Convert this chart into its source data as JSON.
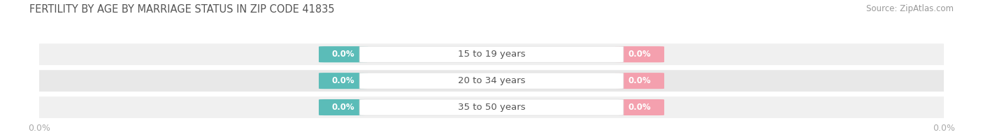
{
  "title": "FERTILITY BY AGE BY MARRIAGE STATUS IN ZIP CODE 41835",
  "source": "Source: ZipAtlas.com",
  "categories": [
    "15 to 19 years",
    "20 to 34 years",
    "35 to 50 years"
  ],
  "married_values": [
    0.0,
    0.0,
    0.0
  ],
  "unmarried_values": [
    0.0,
    0.0,
    0.0
  ],
  "married_color": "#5bbcb8",
  "unmarried_color": "#f4a0ae",
  "row_bg_color_odd": "#f0f0f0",
  "row_bg_color_even": "#e8e8e8",
  "center_pill_color": "#ffffff",
  "center_pill_edge": "#dddddd",
  "center_label_color": "#555555",
  "title_color": "#555555",
  "source_color": "#999999",
  "axis_label_color": "#aaaaaa",
  "background_color": "#ffffff",
  "x_tick_left": "0.0%",
  "x_tick_right": "0.0%",
  "title_fontsize": 10.5,
  "source_fontsize": 8.5,
  "category_fontsize": 9.5,
  "value_fontsize": 8.5,
  "legend_fontsize": 9.5,
  "tick_fontsize": 9.0
}
